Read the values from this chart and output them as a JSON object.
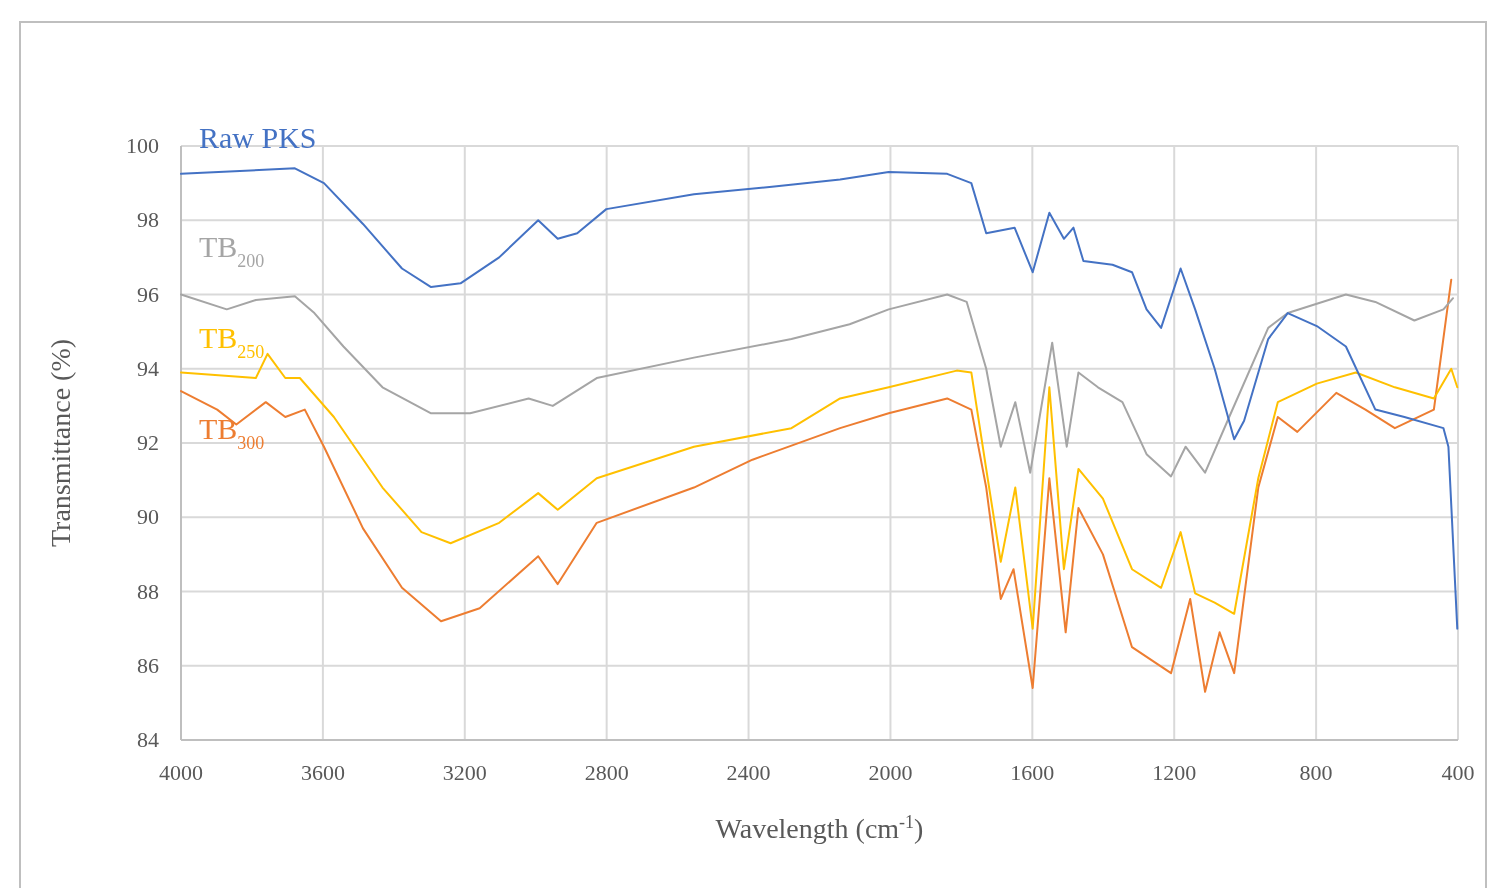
{
  "chart_data": {
    "type": "line",
    "xlabel": "Wavelength (cm$^{-1}$)",
    "ylabel": "Transmittance (%)",
    "xlim": [
      4000,
      400
    ],
    "xticks": [
      4000,
      3600,
      3200,
      2800,
      2400,
      2000,
      1600,
      1200,
      800,
      400
    ],
    "ylim": [
      84,
      100
    ],
    "yticks": [
      84,
      86,
      88,
      90,
      92,
      94,
      96,
      98,
      100
    ],
    "grid": true,
    "marker": "none",
    "line_style": "solid",
    "series": [
      {
        "name": "Raw PKS",
        "color": "#4472c4",
        "x": [
          4000,
          3679,
          3597,
          3487,
          3377,
          3295,
          3212,
          3103,
          2993,
          2938,
          2883,
          2801,
          2554,
          2334,
          2142,
          2005,
          1840,
          1772,
          1730,
          1650,
          1599,
          1552,
          1511,
          1484,
          1456,
          1374,
          1319,
          1278,
          1237,
          1182,
          1141,
          1086,
          1031,
          1003,
          935,
          880,
          798,
          716,
          633,
          551,
          441,
          427,
          402
        ],
        "values": [
          99.25,
          99.4,
          99.0,
          97.9,
          96.7,
          96.2,
          96.3,
          97.0,
          98.0,
          97.5,
          97.65,
          98.3,
          98.7,
          98.9,
          99.1,
          99.3,
          99.25,
          99.0,
          97.65,
          97.8,
          96.6,
          98.2,
          97.5,
          97.8,
          96.9,
          96.8,
          96.6,
          95.6,
          95.1,
          96.7,
          95.6,
          94.0,
          92.1,
          92.6,
          94.8,
          95.5,
          95.15,
          94.6,
          92.9,
          92.7,
          92.4,
          91.9,
          87.0
        ]
      },
      {
        "name": "TB$_{200}$",
        "color": "#a5a5a5",
        "x": [
          4000,
          3871,
          3789,
          3679,
          3624,
          3542,
          3432,
          3295,
          3185,
          3020,
          2952,
          2828,
          2554,
          2279,
          2115,
          2005,
          1840,
          1785,
          1730,
          1689,
          1648,
          1606,
          1544,
          1503,
          1470,
          1415,
          1346,
          1278,
          1209,
          1168,
          1113,
          1045,
          935,
          880,
          716,
          633,
          523,
          441,
          414
        ],
        "values": [
          96.0,
          95.6,
          95.85,
          95.95,
          95.5,
          94.6,
          93.5,
          92.8,
          92.8,
          93.2,
          93.0,
          93.75,
          94.3,
          94.8,
          95.2,
          95.6,
          96.0,
          95.8,
          94.0,
          91.9,
          93.1,
          91.2,
          94.7,
          91.9,
          93.9,
          93.5,
          93.1,
          91.7,
          91.1,
          91.9,
          91.2,
          92.7,
          95.1,
          95.5,
          96.0,
          95.8,
          95.3,
          95.6,
          95.9
        ]
      },
      {
        "name": "TB$_{250}$",
        "color": "#ffc000",
        "x": [
          4000,
          3789,
          3756,
          3706,
          3665,
          3569,
          3432,
          3322,
          3240,
          3103,
          2993,
          2938,
          2828,
          2554,
          2279,
          2142,
          2005,
          1813,
          1772,
          1730,
          1689,
          1648,
          1599,
          1552,
          1511,
          1470,
          1401,
          1319,
          1237,
          1182,
          1141,
          1086,
          1031,
          963,
          908,
          798,
          688,
          578,
          468,
          419,
          402
        ],
        "values": [
          93.9,
          93.75,
          94.4,
          93.75,
          93.75,
          92.7,
          90.8,
          89.6,
          89.3,
          89.85,
          90.65,
          90.2,
          91.05,
          91.9,
          92.4,
          93.2,
          93.5,
          93.95,
          93.9,
          91.3,
          88.8,
          90.8,
          87.0,
          93.5,
          88.6,
          91.3,
          90.5,
          88.6,
          88.1,
          89.6,
          87.95,
          87.7,
          87.4,
          91.05,
          93.1,
          93.6,
          93.9,
          93.5,
          93.2,
          94.0,
          93.5
        ]
      },
      {
        "name": "TB$_{300}$",
        "color": "#ed7d31",
        "x": [
          4000,
          3898,
          3844,
          3761,
          3706,
          3651,
          3597,
          3487,
          3377,
          3267,
          3158,
          2993,
          2938,
          2828,
          2554,
          2389,
          2142,
          2005,
          1840,
          1772,
          1730,
          1689,
          1653,
          1599,
          1552,
          1506,
          1470,
          1401,
          1319,
          1209,
          1155,
          1113,
          1072,
          1031,
          963,
          908,
          853,
          743,
          661,
          578,
          468,
          419
        ],
        "values": [
          93.4,
          92.9,
          92.5,
          93.1,
          92.7,
          92.9,
          91.9,
          89.7,
          88.1,
          87.2,
          87.55,
          88.95,
          88.2,
          89.85,
          90.8,
          91.55,
          92.4,
          92.8,
          93.2,
          92.9,
          90.8,
          87.8,
          88.6,
          85.4,
          91.05,
          86.9,
          90.25,
          89.0,
          86.5,
          85.8,
          87.8,
          85.3,
          86.9,
          85.8,
          90.8,
          92.7,
          92.3,
          93.35,
          92.9,
          92.4,
          92.9,
          96.4
        ]
      }
    ]
  }
}
